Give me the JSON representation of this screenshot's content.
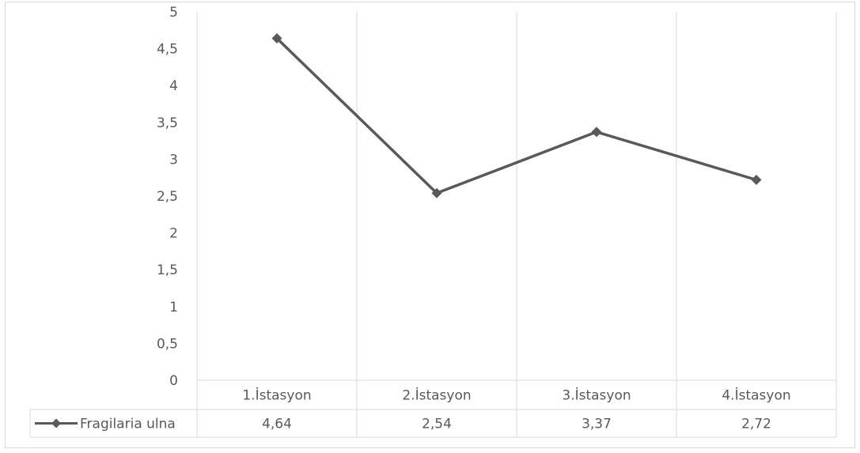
{
  "chart_data": {
    "type": "line",
    "categories": [
      "1.İstasyon",
      "2.İstasyon",
      "3.İstasyon",
      "4.İstasyon"
    ],
    "series": [
      {
        "name": "Fragilaria ulna",
        "values": [
          4.64,
          2.54,
          3.37,
          2.72
        ],
        "value_labels": [
          "4,64",
          "2,54",
          "3,37",
          "2,72"
        ]
      }
    ],
    "ylim": [
      0,
      5
    ],
    "y_ticks": [
      0,
      0.5,
      1,
      1.5,
      2,
      2.5,
      3,
      3.5,
      4,
      4.5,
      5
    ],
    "y_tick_labels": [
      "0",
      "0,5",
      "1",
      "1,5",
      "2",
      "2,5",
      "3",
      "3,5",
      "4",
      "4,5",
      "5"
    ],
    "vertical_gridlines": true,
    "horizontal_gridlines": false,
    "data_table": true,
    "legend": "in data table",
    "marker": "diamond",
    "colors": {
      "line": "#595959",
      "grid": "#d9d9d9",
      "text": "#595959"
    }
  }
}
